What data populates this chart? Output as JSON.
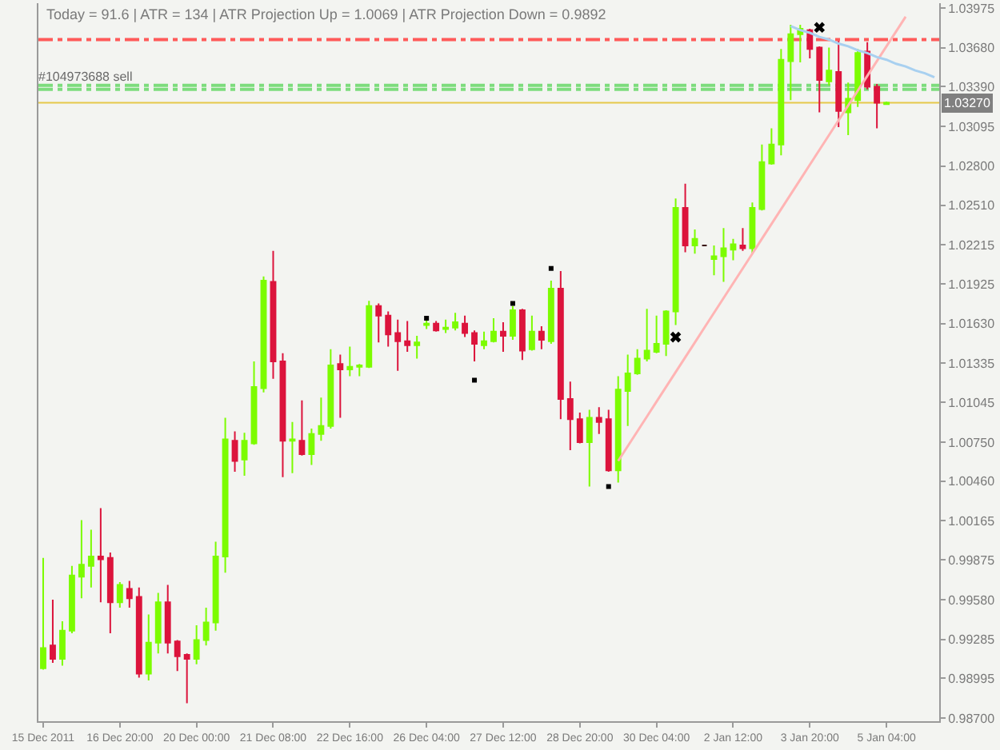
{
  "chart_data": {
    "type": "candlestick",
    "annotations": [
      "Today = 91.6 | ATR = 134 | ATR Projection Up = 1.0069 | ATR Projection Down = 0.9892"
    ],
    "categories": [
      "15 Dec 2011",
      null,
      null,
      null,
      null,
      null,
      null,
      null,
      "16 Dec 20:00",
      null,
      null,
      null,
      null,
      null,
      null,
      null,
      "20 Dec 00:00",
      null,
      null,
      null,
      null,
      null,
      null,
      null,
      "21 Dec 08:00",
      null,
      null,
      null,
      null,
      null,
      null,
      null,
      "22 Dec 16:00",
      null,
      null,
      null,
      null,
      null,
      null,
      null,
      "26 Dec 04:00",
      null,
      null,
      null,
      null,
      null,
      null,
      null,
      "27 Dec 12:00",
      null,
      null,
      null,
      null,
      null,
      null,
      null,
      "28 Dec 20:00",
      null,
      null,
      null,
      null,
      null,
      null,
      null,
      "30 Dec 04:00",
      null,
      null,
      null,
      null,
      null,
      null,
      null,
      "2 Jan 12:00",
      null,
      null,
      null,
      null,
      null,
      null,
      null,
      "3 Jan 20:00",
      null,
      null,
      null,
      null,
      null,
      null,
      null,
      "5 Jan 04:00",
      null,
      null,
      null,
      null,
      null
    ],
    "ohlc": [
      [
        0.9907,
        0.9989,
        0.9906,
        0.9922
      ],
      [
        0.9924,
        0.9958,
        0.9911,
        0.9914
      ],
      [
        0.9914,
        0.9942,
        0.9909,
        0.9935
      ],
      [
        0.9935,
        0.9983,
        0.9933,
        0.9976
      ],
      [
        0.9975,
        1.0017,
        0.9959,
        0.9984
      ],
      [
        0.9983,
        1.001,
        0.9967,
        0.999
      ],
      [
        0.999,
        1.0026,
        0.9956,
        0.9988
      ],
      [
        0.9989,
        0.9993,
        0.9933,
        0.9956
      ],
      [
        0.9956,
        0.9971,
        0.9952,
        0.9969
      ],
      [
        0.9966,
        0.9972,
        0.9952,
        0.9959
      ],
      [
        0.996,
        0.9967,
        0.99,
        0.9903
      ],
      [
        0.9903,
        0.9947,
        0.9898,
        0.9926
      ],
      [
        0.9926,
        0.9963,
        0.9918,
        0.9956
      ],
      [
        0.9956,
        0.9969,
        0.9918,
        0.9926
      ],
      [
        0.9927,
        0.9928,
        0.9905,
        0.9916
      ],
      [
        0.9917,
        0.9918,
        0.9881,
        0.9914
      ],
      [
        0.9914,
        0.9939,
        0.991,
        0.9928
      ],
      [
        0.9928,
        0.9952,
        0.9924,
        0.9941
      ],
      [
        0.9941,
        1.0001,
        0.9935,
        0.999
      ],
      [
        0.999,
        1.0093,
        0.9978,
        1.0077
      ],
      [
        1.0076,
        1.0083,
        1.0053,
        1.0061
      ],
      [
        1.0062,
        1.0082,
        1.005,
        1.0076
      ],
      [
        1.0074,
        1.0135,
        1.0073,
        1.0116
      ],
      [
        1.0115,
        1.0198,
        1.0112,
        1.0195
      ],
      [
        1.0194,
        1.0217,
        1.0122,
        1.0135
      ],
      [
        1.0135,
        1.0141,
        1.0049,
        1.0076
      ],
      [
        1.0076,
        1.009,
        1.0052,
        1.0077
      ],
      [
        1.0076,
        1.0106,
        1.0065,
        1.0066
      ],
      [
        1.0066,
        1.0085,
        1.0058,
        1.0081
      ],
      [
        1.0081,
        1.0108,
        1.0076,
        1.0087
      ],
      [
        1.0087,
        1.0144,
        1.0085,
        1.0132
      ],
      [
        1.0133,
        1.014,
        1.0093,
        1.0129
      ],
      [
        1.0129,
        1.0146,
        1.0124,
        1.0131
      ],
      [
        1.0131,
        1.0133,
        1.0124,
        1.0132
      ],
      [
        1.0131,
        1.018,
        1.013,
        1.0176
      ],
      [
        1.0176,
        1.0178,
        1.0149,
        1.0169
      ],
      [
        1.0169,
        1.0172,
        1.0146,
        1.0155
      ],
      [
        1.0156,
        1.0166,
        1.0128,
        1.015
      ],
      [
        1.015,
        1.0165,
        1.0142,
        1.0147
      ],
      [
        1.0147,
        1.0154,
        1.0137,
        1.0149
      ],
      [
        1.0162,
        1.0167,
        1.0159,
        1.0163
      ],
      [
        1.0163,
        1.0165,
        1.0157,
        1.0158
      ],
      [
        1.0159,
        1.0166,
        1.0156,
        1.016
      ],
      [
        1.016,
        1.0171,
        1.0158,
        1.0164
      ],
      [
        1.0163,
        1.0169,
        1.0153,
        1.0156
      ],
      [
        1.0156,
        1.0158,
        1.0135,
        1.0148
      ],
      [
        1.0147,
        1.0157,
        1.0144,
        1.015
      ],
      [
        1.015,
        1.0167,
        1.0149,
        1.0157
      ],
      [
        1.0157,
        1.0164,
        1.0142,
        1.0154
      ],
      [
        1.0154,
        1.0176,
        1.0151,
        1.0173
      ],
      [
        1.0173,
        1.0174,
        1.0136,
        1.0143
      ],
      [
        1.0144,
        1.0169,
        1.0143,
        1.0157
      ],
      [
        1.0157,
        1.0161,
        1.0144,
        1.0151
      ],
      [
        1.015,
        1.0195,
        1.0148,
        1.0189
      ],
      [
        1.0189,
        1.0202,
        1.0092,
        1.0107
      ],
      [
        1.0107,
        1.012,
        1.0069,
        1.0092
      ],
      [
        1.0092,
        1.0097,
        1.0074,
        1.0075
      ],
      [
        1.0075,
        1.0099,
        1.0042,
        1.0093
      ],
      [
        1.0093,
        1.0101,
        1.0081,
        1.009
      ],
      [
        1.0092,
        1.0099,
        1.0053,
        1.0054
      ],
      [
        1.0054,
        1.0124,
        1.0045,
        1.0114
      ],
      [
        1.0113,
        1.014,
        1.0087,
        1.0126
      ],
      [
        1.0126,
        1.0144,
        1.0125,
        1.0137
      ],
      [
        1.0137,
        1.0174,
        1.0135,
        1.0143
      ],
      [
        1.0142,
        1.0169,
        1.0141,
        1.0148
      ],
      [
        1.0148,
        1.0173,
        1.0139,
        1.0172
      ],
      [
        1.0172,
        1.0256,
        1.0162,
        1.0249
      ],
      [
        1.0249,
        1.0267,
        1.0216,
        1.0221
      ],
      [
        1.0221,
        1.0233,
        1.0215,
        1.0226
      ],
      [
        1.0221,
        1.0221,
        1.0221,
        1.0221
      ],
      [
        1.0211,
        1.0221,
        1.0199,
        1.0213
      ],
      [
        1.0213,
        1.0234,
        1.0194,
        1.0219
      ],
      [
        1.0218,
        1.0226,
        1.021,
        1.0222
      ],
      [
        1.0221,
        1.0234,
        1.0217,
        1.0219
      ],
      [
        1.0219,
        1.0253,
        1.0215,
        1.0249
      ],
      [
        1.0248,
        1.0296,
        1.0247,
        1.0283
      ],
      [
        1.0282,
        1.0308,
        1.0281,
        1.0296
      ],
      [
        1.0296,
        1.0367,
        1.0288,
        1.0359
      ],
      [
        1.0358,
        1.0385,
        1.0329,
        1.0378
      ],
      [
        1.0378,
        1.0385,
        1.0357,
        1.0382
      ],
      [
        1.0381,
        1.0382,
        1.036,
        1.0367
      ],
      [
        1.0368,
        1.0369,
        1.032,
        1.0344
      ],
      [
        1.0343,
        1.0368,
        1.034,
        1.0351
      ],
      [
        1.035,
        1.0373,
        1.0309,
        1.0321
      ],
      [
        1.032,
        1.0342,
        1.0303,
        1.033
      ],
      [
        1.0329,
        1.0367,
        1.0324,
        1.0364
      ],
      [
        1.0365,
        1.0372,
        1.0337,
        1.0339
      ],
      [
        1.0339,
        1.0341,
        1.0308,
        1.0327
      ],
      [
        1.0326,
        1.0328,
        1.0326,
        1.0327
      ],
      null,
      null,
      null,
      null,
      null
    ],
    "colors": [
      "#7cfc00",
      "#dc143c",
      "#7cfc00",
      "#7cfc00",
      "#7cfc00",
      "#7cfc00",
      "#dc143c",
      "#dc143c",
      "#7cfc00",
      "#dc143c",
      "#dc143c",
      "#7cfc00",
      "#7cfc00",
      "#dc143c",
      "#dc143c",
      "#dc143c",
      "#7cfc00",
      "#7cfc00",
      "#7cfc00",
      "#7cfc00",
      "#dc143c",
      "#7cfc00",
      "#7cfc00",
      "#7cfc00",
      "#dc143c",
      "#dc143c",
      "#7cfc00",
      "#dc143c",
      "#7cfc00",
      "#7cfc00",
      "#7cfc00",
      "#dc143c",
      "#7cfc00",
      "#7cfc00",
      "#7cfc00",
      "#dc143c",
      "#dc143c",
      "#dc143c",
      "#dc143c",
      "#7cfc00",
      "#7cfc00",
      "#dc143c",
      "#7cfc00",
      "#7cfc00",
      "#dc143c",
      "#dc143c",
      "#7cfc00",
      "#7cfc00",
      "#dc143c",
      "#7cfc00",
      "#dc143c",
      "#7cfc00",
      "#dc143c",
      "#7cfc00",
      "#dc143c",
      "#dc143c",
      "#dc143c",
      "#7cfc00",
      "#dc143c",
      "#dc143c",
      "#7cfc00",
      "#7cfc00",
      "#7cfc00",
      "#7cfc00",
      "#7cfc00",
      "#7cfc00",
      "#7cfc00",
      "#dc143c",
      "#7cfc00",
      "#3a1010",
      "#7cfc00",
      "#7cfc00",
      "#7cfc00",
      "#dc143c",
      "#7cfc00",
      "#7cfc00",
      "#7cfc00",
      "#7cfc00",
      "#7cfc00",
      "#7cfc00",
      "#dc143c",
      "#dc143c",
      "#7cfc00",
      "#dc143c",
      "#7cfc00",
      "#7cfc00",
      "#dc143c",
      "#dc143c",
      "#7cfc00",
      null,
      null,
      null,
      null,
      null
    ],
    "ylim": [
      0.98677,
      1.0401
    ],
    "yticks": [
      1.03975,
      {
        "value": 1.0368,
        "label": "1.03680"
      },
      {
        "value": 1.0339,
        "label": "1.03390"
      },
      1.03095,
      {
        "value": 1.028,
        "label": "1.02800"
      },
      {
        "value": 1.0251,
        "label": "1.02510"
      },
      1.02215,
      1.01925,
      {
        "value": 1.0163,
        "label": "1.01630"
      },
      1.01335,
      1.01045,
      {
        "value": 1.0075,
        "label": "1.00750"
      },
      {
        "value": 1.0046,
        "label": "1.00460"
      },
      1.00165,
      0.99875,
      {
        "value": 0.9958,
        "label": "0.99580"
      },
      0.99285,
      0.98995,
      {
        "value": 0.987,
        "label": "0.98700"
      }
    ],
    "ref_lines": [
      {
        "axis": "y",
        "value": 1.0374,
        "color": "#ff5a5a",
        "line_style": "dashdot"
      },
      {
        "axis": "y",
        "value": 1.034,
        "color": "#7ddc7d",
        "line_style": "dashdot",
        "label": "#104973688 sell"
      },
      {
        "axis": "y",
        "value": 1.0337,
        "color": "#7ddc7d",
        "line_style": "dashdot"
      },
      {
        "axis": "y",
        "value": 1.0327,
        "color": "#e6c84a",
        "line_style": "solid",
        "label": "1.03270"
      }
    ],
    "series": [
      {
        "type": "line",
        "color": "#ffb4b4",
        "values": [
          null,
          null,
          null,
          null,
          null,
          null,
          null,
          null,
          null,
          null,
          null,
          null,
          null,
          null,
          null,
          null,
          null,
          null,
          null,
          null,
          null,
          null,
          null,
          null,
          null,
          null,
          null,
          null,
          null,
          null,
          null,
          null,
          null,
          null,
          null,
          null,
          null,
          null,
          null,
          null,
          null,
          null,
          null,
          null,
          null,
          null,
          null,
          null,
          null,
          null,
          null,
          null,
          null,
          null,
          null,
          null,
          null,
          null,
          null,
          null,
          1.0061,
          1.0072,
          1.0083,
          1.0094,
          1.0105,
          1.0116,
          1.0127,
          1.0138,
          1.0149,
          1.016,
          1.0171,
          1.0182,
          1.0193,
          1.0204,
          1.0215,
          1.0226,
          1.0237,
          1.0248,
          1.0259,
          1.027,
          1.0281,
          1.0292,
          1.0303,
          1.0314,
          1.0325,
          1.0336,
          1.0347,
          1.0358,
          1.0369,
          1.038,
          1.0391,
          null,
          null,
          null
        ]
      },
      {
        "type": "line",
        "color": "#a8d0f0",
        "values": [
          null,
          null,
          null,
          null,
          null,
          null,
          null,
          null,
          null,
          null,
          null,
          null,
          null,
          null,
          null,
          null,
          null,
          null,
          null,
          null,
          null,
          null,
          null,
          null,
          null,
          null,
          null,
          null,
          null,
          null,
          null,
          null,
          null,
          null,
          null,
          null,
          null,
          null,
          null,
          null,
          null,
          null,
          null,
          null,
          null,
          null,
          null,
          null,
          null,
          null,
          null,
          null,
          null,
          null,
          null,
          null,
          null,
          null,
          null,
          null,
          null,
          null,
          null,
          null,
          null,
          null,
          null,
          null,
          null,
          null,
          null,
          null,
          null,
          null,
          null,
          null,
          null,
          null,
          1.0384,
          1.0381,
          1.0379,
          1.0376,
          1.0374,
          1.0371,
          1.0369,
          1.0366,
          1.0364,
          1.0361,
          1.0359,
          1.0356,
          1.0354,
          1.0351,
          1.0349,
          1.0346
        ]
      },
      {
        "type": "scatter",
        "marker": "square",
        "color": "#000000",
        "values": [
          null,
          null,
          null,
          null,
          null,
          null,
          null,
          null,
          null,
          null,
          null,
          null,
          null,
          null,
          null,
          null,
          null,
          null,
          null,
          null,
          null,
          null,
          null,
          null,
          null,
          null,
          null,
          null,
          null,
          null,
          null,
          null,
          null,
          null,
          null,
          null,
          null,
          null,
          null,
          null,
          1.0167,
          null,
          null,
          null,
          null,
          1.0121,
          null,
          null,
          null,
          1.0178,
          null,
          null,
          null,
          1.0204,
          null,
          null,
          null,
          null,
          null,
          1.0042,
          null,
          null,
          null,
          null,
          null,
          null,
          null,
          null,
          null,
          null,
          null,
          null,
          null,
          null,
          null,
          null,
          null,
          null,
          null,
          null,
          null,
          null,
          null,
          null,
          null,
          null,
          null,
          null,
          null,
          null,
          null,
          null,
          null,
          null
        ]
      },
      {
        "type": "scatter",
        "marker": "cross",
        "color": "#000000",
        "values": [
          null,
          null,
          null,
          null,
          null,
          null,
          null,
          null,
          null,
          null,
          null,
          null,
          null,
          null,
          null,
          null,
          null,
          null,
          null,
          null,
          null,
          null,
          null,
          null,
          null,
          null,
          null,
          null,
          null,
          null,
          null,
          null,
          null,
          null,
          null,
          null,
          null,
          null,
          null,
          null,
          null,
          null,
          null,
          null,
          null,
          null,
          null,
          null,
          null,
          null,
          null,
          null,
          null,
          null,
          null,
          null,
          null,
          null,
          null,
          null,
          null,
          null,
          null,
          null,
          null,
          null,
          1.0153,
          null,
          null,
          null,
          null,
          null,
          null,
          null,
          null,
          null,
          null,
          null,
          null,
          null,
          null,
          1.0383,
          null,
          null,
          null,
          null,
          null,
          null,
          null,
          null,
          null,
          null,
          null,
          null
        ]
      }
    ]
  }
}
